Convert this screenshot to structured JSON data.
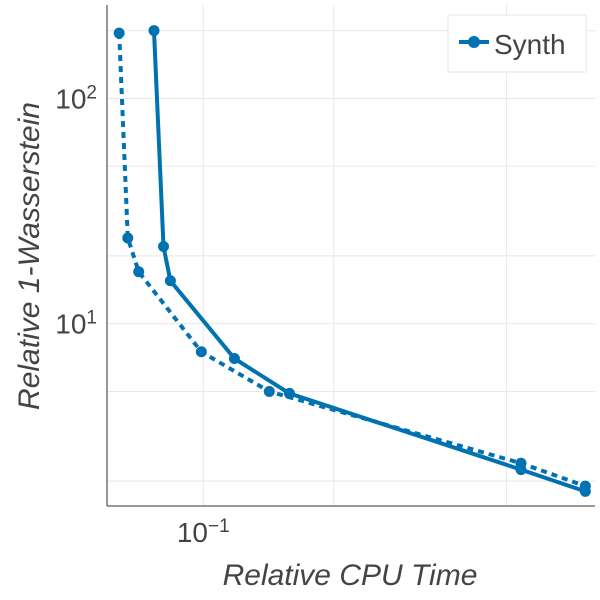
{
  "chart_data": {
    "type": "line",
    "xscale": "log",
    "yscale": "log",
    "xlabel": "Relative CPU Time",
    "ylabel": "Relative 1-Wasserstein",
    "xlim": [
      0.06,
      0.8
    ],
    "ylim": [
      1.55,
      260
    ],
    "x_ticks": [
      {
        "value": 0.1,
        "base": "10",
        "exp": "−1"
      }
    ],
    "y_ticks": [
      {
        "value": 10,
        "base": "10",
        "exp": "1"
      },
      {
        "value": 100,
        "base": "10",
        "exp": "2"
      }
    ],
    "grid": true,
    "legend_position": "top-right",
    "legend": [
      {
        "name": "Synth"
      }
    ],
    "series": [
      {
        "name": "Synth",
        "style": "solid",
        "color": "#0072b2",
        "in_legend": true,
        "x": [
          0.077,
          0.081,
          0.084,
          0.118,
          0.158,
          0.54,
          0.76
        ],
        "y": [
          200,
          22,
          15.5,
          7.0,
          4.9,
          2.25,
          1.8
        ]
      },
      {
        "name": "Synth (dashed)",
        "style": "dashed",
        "color": "#0072b2",
        "in_legend": false,
        "x": [
          0.064,
          0.067,
          0.071,
          0.099,
          0.142,
          0.54,
          0.76
        ],
        "y": [
          195,
          24,
          17,
          7.5,
          5.0,
          2.4,
          1.9
        ]
      }
    ]
  }
}
